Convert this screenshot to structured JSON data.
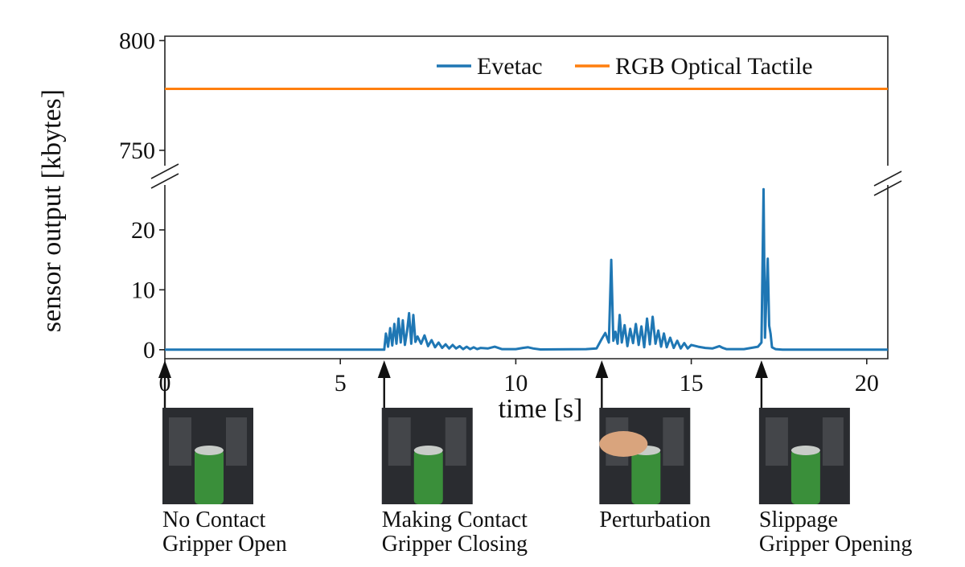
{
  "chart_data": {
    "type": "line",
    "broken_y_axis": true,
    "xlabel": "time [s]",
    "ylabel": "sensor output [kbytes]",
    "xlim": [
      0,
      20.6
    ],
    "xticks": [
      0,
      5,
      10,
      15,
      20
    ],
    "ylim_top": [
      743,
      802
    ],
    "ylim_bottom": [
      -1.5,
      27.5
    ],
    "yticks_top": [
      750,
      800
    ],
    "yticks_bottom": [
      0,
      10,
      20
    ],
    "legend_position": "top-right",
    "series": [
      {
        "name": "Evetac",
        "color": "#1f77b4",
        "x": [
          0,
          6.25,
          6.3,
          6.36,
          6.42,
          6.48,
          6.54,
          6.6,
          6.66,
          6.72,
          6.78,
          6.84,
          6.9,
          6.96,
          7.02,
          7.08,
          7.14,
          7.2,
          7.3,
          7.4,
          7.5,
          7.6,
          7.7,
          7.8,
          7.9,
          8.0,
          8.1,
          8.2,
          8.3,
          8.4,
          8.5,
          8.6,
          8.7,
          8.8,
          8.9,
          9.0,
          9.2,
          9.4,
          9.6,
          10.0,
          10.2,
          10.35,
          10.5,
          10.7,
          12.0,
          12.3,
          12.45,
          12.55,
          12.65,
          12.72,
          12.78,
          12.84,
          12.9,
          12.96,
          13.02,
          13.1,
          13.18,
          13.26,
          13.34,
          13.42,
          13.5,
          13.58,
          13.66,
          13.74,
          13.82,
          13.9,
          13.98,
          14.06,
          14.14,
          14.22,
          14.3,
          14.4,
          14.5,
          14.6,
          14.7,
          14.8,
          14.9,
          15.0,
          15.2,
          15.4,
          15.6,
          15.8,
          15.9,
          16.0,
          16.5,
          16.9,
          17.0,
          17.06,
          17.1,
          17.14,
          17.18,
          17.22,
          17.26,
          17.3,
          17.4,
          17.6,
          20.6
        ],
        "y": [
          0,
          0,
          2.7,
          0.5,
          3.6,
          0.7,
          4.3,
          1.0,
          5.2,
          1.2,
          4.9,
          0.8,
          3.0,
          6.1,
          1.0,
          5.8,
          1.3,
          2.2,
          1.0,
          2.4,
          0.6,
          1.6,
          0.4,
          1.2,
          0.3,
          0.9,
          0.2,
          0.8,
          0.2,
          0.6,
          0.1,
          0.5,
          0.1,
          0.4,
          0.1,
          0.3,
          0.2,
          0.5,
          0.1,
          0.1,
          0.3,
          0.4,
          0.2,
          0.05,
          0.1,
          0.2,
          1.8,
          2.8,
          1.2,
          15.0,
          1.5,
          3.0,
          1.0,
          5.8,
          1.2,
          4.1,
          0.6,
          3.5,
          1.1,
          4.3,
          0.8,
          3.9,
          0.4,
          5.2,
          0.9,
          5.5,
          1.0,
          3.2,
          0.5,
          2.7,
          0.4,
          2.0,
          0.3,
          1.5,
          0.2,
          1.1,
          0.2,
          0.8,
          0.5,
          0.3,
          0.2,
          0.6,
          0.3,
          0.1,
          0.1,
          0.5,
          1.2,
          26.8,
          2.0,
          9.0,
          15.2,
          4.0,
          2.7,
          0.4,
          0.1,
          0,
          0
        ]
      },
      {
        "name": "RGB Optical Tactile",
        "color": "#ff7f0e",
        "x": [
          0,
          20.6
        ],
        "y": [
          778,
          778
        ]
      }
    ],
    "annotations": [
      {
        "time": 0,
        "lines": [
          "No Contact",
          "Gripper Open"
        ]
      },
      {
        "time": 6.25,
        "lines": [
          "Making Contact",
          "Gripper Closing"
        ]
      },
      {
        "time": 12.45,
        "lines": [
          "Perturbation"
        ]
      },
      {
        "time": 17.0,
        "lines": [
          "Slippage",
          "Gripper Opening"
        ]
      }
    ]
  }
}
